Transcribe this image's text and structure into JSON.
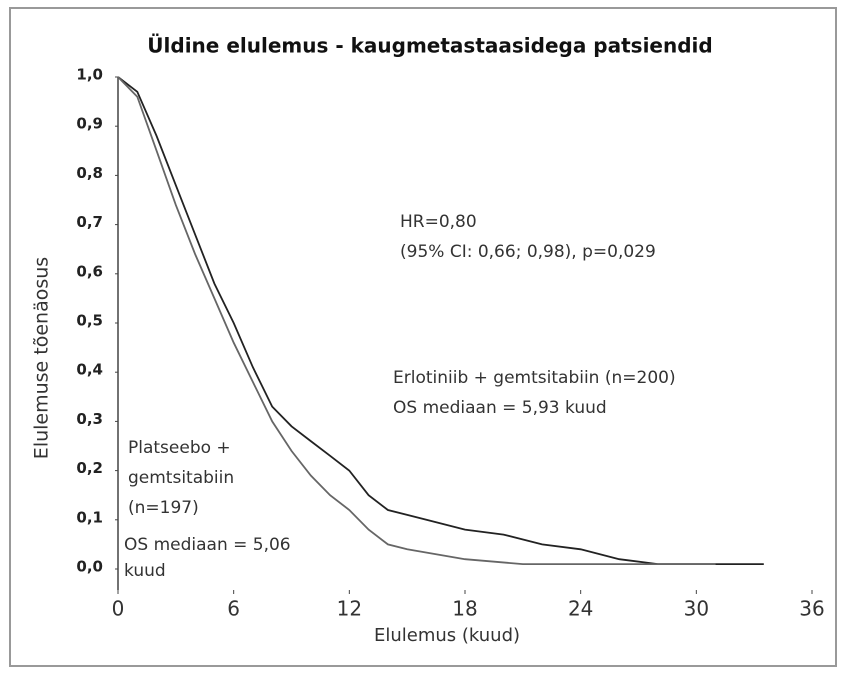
{
  "chart_data": {
    "type": "line",
    "title": "Üldine elulemus - kaugmetastaasidega patsiendid",
    "x_label": "Elulemus (kuud)",
    "y_label": "Elulemuse tõenäosus",
    "series": [
      {
        "name": "Erlotiniib + gemtsitabiin (n=200)",
        "color": "#222222",
        "x": [
          0,
          1,
          2,
          3,
          4,
          5,
          6,
          7,
          8,
          9,
          10,
          11,
          12,
          13,
          14,
          15,
          16,
          18,
          20,
          22,
          24,
          26,
          28,
          30,
          33.5
        ],
        "values": [
          1.0,
          0.97,
          0.88,
          0.78,
          0.68,
          0.58,
          0.5,
          0.41,
          0.33,
          0.29,
          0.26,
          0.23,
          0.2,
          0.15,
          0.12,
          0.11,
          0.1,
          0.08,
          0.07,
          0.05,
          0.04,
          0.02,
          0.01,
          0.01,
          0.01
        ]
      },
      {
        "name": "Platseebo + gemtsitabiin (n=197)",
        "color": "#666666",
        "x": [
          0,
          1,
          2,
          3,
          4,
          5,
          6,
          7,
          8,
          9,
          10,
          11,
          12,
          13,
          14,
          15,
          18,
          21,
          24,
          27,
          31
        ],
        "values": [
          1.0,
          0.96,
          0.85,
          0.74,
          0.64,
          0.55,
          0.46,
          0.38,
          0.3,
          0.24,
          0.19,
          0.15,
          0.12,
          0.08,
          0.05,
          0.04,
          0.02,
          0.01,
          0.01,
          0.01,
          0.01
        ]
      }
    ],
    "annotations": [
      "HR=0,80",
      "(95% CI: 0,66; 0,98), p=0,029",
      "Erlotiniib + gemtsitabiin (n=200)",
      "OS mediaan = 5,93 kuud",
      "Platseebo +",
      "gemtsitabiin",
      "(n=197)",
      "OS mediaan = 5,06",
      "kuud"
    ],
    "xlim": [
      0,
      36
    ],
    "xticks": [
      0,
      6,
      12,
      18,
      24,
      30,
      36
    ],
    "ylim": [
      0,
      1
    ],
    "yticks": [
      {
        "value": 0,
        "label": "0,0"
      },
      {
        "value": 0.1,
        "label": "0,1"
      },
      {
        "value": 0.2,
        "label": "0,2"
      },
      {
        "value": 0.3,
        "label": "0,3"
      },
      {
        "value": 0.4,
        "label": "0,4"
      },
      {
        "value": 0.5,
        "label": "0,5"
      },
      {
        "value": 0.6,
        "label": "0,6"
      },
      {
        "value": 0.7,
        "label": "0,7"
      },
      {
        "value": 0.8,
        "label": "0,8"
      },
      {
        "value": 0.9,
        "label": "0,9"
      },
      {
        "value": 1,
        "label": "1,0"
      }
    ],
    "grid": false
  }
}
